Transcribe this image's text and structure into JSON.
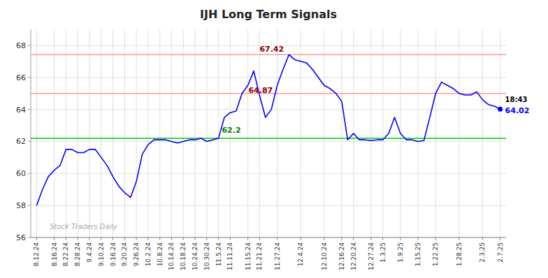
{
  "chart_data": {
    "type": "line",
    "title": "IJH Long Term Signals",
    "categories": [
      "8.12.24",
      null,
      null,
      "8.16.24",
      null,
      "8.22.24",
      null,
      "8.28.24",
      null,
      "9.4.24",
      null,
      "9.10.24",
      null,
      "9.16.24",
      null,
      "9.20.24",
      null,
      "9.26.24",
      null,
      "10.2.24",
      null,
      "10.8.24",
      null,
      "10.14.24",
      null,
      "10.18.24",
      null,
      "10.24.24",
      null,
      "10.30.24",
      null,
      "11.5.24",
      null,
      "11.11.24",
      null,
      null,
      "11.15.24",
      null,
      "11.21.24",
      null,
      null,
      "11.27.24",
      null,
      null,
      null,
      "12.4.24",
      null,
      null,
      null,
      "12.10.24",
      null,
      null,
      "12.16.24",
      null,
      "12.20.24",
      null,
      null,
      "12.27.24",
      null,
      "1.3.25",
      null,
      null,
      "1.9.25",
      null,
      null,
      "1.15.25",
      null,
      null,
      "1.22.25",
      null,
      null,
      null,
      "1.28.25",
      null,
      null,
      null,
      "2.3.25",
      null,
      null,
      "2.7.25"
    ],
    "values": [
      58.0,
      59.0,
      59.8,
      60.2,
      60.5,
      61.5,
      61.5,
      61.3,
      61.3,
      61.5,
      61.5,
      61.0,
      60.5,
      59.8,
      59.2,
      58.8,
      58.5,
      59.5,
      61.2,
      61.8,
      62.1,
      62.1,
      62.1,
      62.0,
      61.9,
      62.0,
      62.1,
      62.1,
      62.2,
      62.0,
      62.1,
      62.2,
      63.5,
      63.8,
      63.9,
      65.0,
      65.5,
      66.4,
      64.87,
      63.5,
      64.0,
      65.5,
      66.5,
      67.42,
      67.1,
      67.0,
      66.9,
      66.5,
      66.0,
      65.5,
      65.3,
      65.0,
      64.5,
      62.1,
      62.5,
      62.1,
      62.1,
      62.05,
      62.1,
      62.1,
      62.5,
      63.5,
      62.5,
      62.1,
      62.1,
      62.0,
      62.05,
      63.5,
      65.0,
      65.7,
      65.5,
      65.3,
      65.0,
      64.9,
      64.9,
      65.1,
      64.6,
      64.3,
      64.2,
      64.02
    ],
    "color": "blue",
    "ylim": [
      56,
      69
    ],
    "yticks": [
      56,
      58,
      60,
      62,
      64,
      66,
      68
    ],
    "grid": true,
    "reference_lines": [
      {
        "value": 67.42,
        "color": "#ff9999"
      },
      {
        "value": 65.0,
        "color": "#ff9999"
      },
      {
        "value": 62.2,
        "color": "#00cc00"
      }
    ],
    "annotations": [
      {
        "text": "67.42",
        "x": 43,
        "y": 67.42,
        "color": "darkred"
      },
      {
        "text": "64.87",
        "x": 38,
        "y": 64.87,
        "color": "darkred"
      },
      {
        "text": "62.2",
        "x": 28,
        "y": 62.2,
        "color": "green"
      }
    ],
    "last_point": {
      "time_label": "18:43",
      "price_label": "64.02",
      "color": "blue"
    },
    "watermark": "Stock Traders Daily"
  }
}
